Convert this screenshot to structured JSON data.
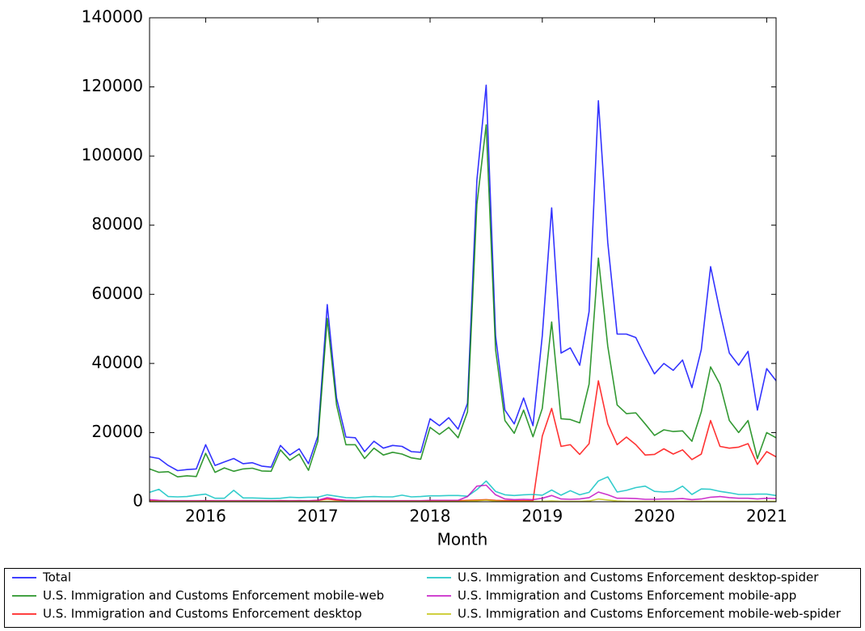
{
  "chart_data": {
    "type": "line",
    "x_label": "Month",
    "x": [
      "2015-07",
      "2015-08",
      "2015-09",
      "2015-10",
      "2015-11",
      "2015-12",
      "2016-01",
      "2016-02",
      "2016-03",
      "2016-04",
      "2016-05",
      "2016-06",
      "2016-07",
      "2016-08",
      "2016-09",
      "2016-10",
      "2016-11",
      "2016-12",
      "2017-01",
      "2017-02",
      "2017-03",
      "2017-04",
      "2017-05",
      "2017-06",
      "2017-07",
      "2017-08",
      "2017-09",
      "2017-10",
      "2017-11",
      "2017-12",
      "2018-01",
      "2018-02",
      "2018-03",
      "2018-04",
      "2018-05",
      "2018-06",
      "2018-07",
      "2018-08",
      "2018-09",
      "2018-10",
      "2018-11",
      "2018-12",
      "2019-01",
      "2019-02",
      "2019-03",
      "2019-04",
      "2019-05",
      "2019-06",
      "2019-07",
      "2019-08",
      "2019-09",
      "2019-10",
      "2019-11",
      "2019-12",
      "2020-01",
      "2020-02",
      "2020-03",
      "2020-04",
      "2020-05",
      "2020-06",
      "2020-07",
      "2020-08",
      "2020-09",
      "2020-10",
      "2020-11",
      "2020-12",
      "2021-01",
      "2021-02"
    ],
    "xlim": [
      "2015-07",
      "2021-02"
    ],
    "xticks": [
      {
        "value": "2016-01",
        "label": "2016"
      },
      {
        "value": "2017-01",
        "label": "2017"
      },
      {
        "value": "2018-01",
        "label": "2018"
      },
      {
        "value": "2019-01",
        "label": "2019"
      },
      {
        "value": "2020-01",
        "label": "2020"
      },
      {
        "value": "2021-01",
        "label": "2021"
      }
    ],
    "ylim": [
      0,
      140000
    ],
    "yticks": [
      0,
      20000,
      40000,
      60000,
      80000,
      100000,
      120000,
      140000
    ],
    "legend": "below",
    "series": [
      {
        "name": "Total",
        "color": "#0000ff",
        "values": [
          13000,
          12500,
          10500,
          9000,
          9300,
          9500,
          16500,
          10500,
          11500,
          12500,
          11000,
          11300,
          10300,
          10000,
          16300,
          13500,
          15300,
          11000,
          19000,
          57000,
          30000,
          18700,
          18500,
          14500,
          17500,
          15500,
          16300,
          16000,
          14500,
          14300,
          24000,
          22000,
          24300,
          21000,
          28500,
          93000,
          120500,
          48000,
          26500,
          22500,
          30000,
          22000,
          48000,
          85000,
          43000,
          44500,
          39500,
          55000,
          116000,
          75000,
          48500,
          48500,
          47500,
          42000,
          37000,
          40000,
          38000,
          41000,
          33000,
          44000,
          68000,
          55000,
          43000,
          39500,
          43500,
          26500,
          38500,
          35000
        ]
      },
      {
        "name": "U.S. Immigration and Customs Enforcement mobile-web",
        "color": "#008000",
        "values": [
          9500,
          8500,
          8700,
          7200,
          7500,
          7300,
          14000,
          8500,
          9800,
          8800,
          9500,
          9700,
          8900,
          8800,
          15000,
          12000,
          13800,
          9100,
          17500,
          53000,
          28000,
          16500,
          16500,
          12500,
          15500,
          13500,
          14300,
          13800,
          12700,
          12300,
          21500,
          19500,
          21500,
          18500,
          26000,
          86000,
          109000,
          44000,
          23500,
          19800,
          26500,
          18800,
          27000,
          52000,
          24000,
          23800,
          22800,
          34000,
          70500,
          45000,
          28000,
          25500,
          25700,
          22500,
          19200,
          20800,
          20300,
          20500,
          17500,
          26000,
          39000,
          34000,
          23500,
          20000,
          23500,
          12500,
          20000,
          18500
        ]
      },
      {
        "name": "U.S. Immigration and Customs Enforcement desktop",
        "color": "#ff0000",
        "values": [
          300,
          300,
          200,
          200,
          200,
          200,
          300,
          200,
          200,
          200,
          200,
          200,
          200,
          200,
          300,
          200,
          300,
          200,
          400,
          800,
          500,
          300,
          300,
          200,
          200,
          200,
          200,
          200,
          200,
          200,
          300,
          300,
          300,
          300,
          400,
          500,
          600,
          400,
          300,
          300,
          300,
          300,
          19000,
          27000,
          16000,
          16500,
          13700,
          16800,
          35000,
          22500,
          16500,
          18700,
          16500,
          13500,
          13700,
          15300,
          13800,
          15000,
          12200,
          13800,
          23500,
          16000,
          15500,
          15800,
          16800,
          10800,
          14500,
          13000
        ]
      },
      {
        "name": "U.S. Immigration and Customs Enforcement desktop-spider",
        "color": "#00bfbf",
        "values": [
          2700,
          3600,
          1500,
          1400,
          1500,
          1900,
          2200,
          1000,
          1000,
          3300,
          1100,
          1100,
          1000,
          900,
          1000,
          1300,
          1200,
          1300,
          1300,
          2000,
          1600,
          1200,
          1100,
          1400,
          1500,
          1400,
          1400,
          1900,
          1400,
          1500,
          1700,
          1700,
          1800,
          1800,
          1600,
          3500,
          6000,
          3000,
          2000,
          1800,
          2000,
          2100,
          1900,
          3400,
          1900,
          3200,
          2000,
          2700,
          6000,
          7200,
          2800,
          3300,
          4100,
          4500,
          3000,
          2800,
          3000,
          4500,
          2100,
          3700,
          3600,
          3000,
          2600,
          2100,
          2100,
          2200,
          2200,
          1800
        ]
      },
      {
        "name": "U.S. Immigration and Customs Enforcement mobile-app",
        "color": "#bf00bf",
        "values": [
          600,
          400,
          300,
          300,
          300,
          300,
          300,
          300,
          300,
          300,
          300,
          300,
          300,
          300,
          300,
          300,
          300,
          300,
          400,
          1200,
          700,
          400,
          300,
          300,
          300,
          300,
          300,
          300,
          300,
          300,
          400,
          400,
          400,
          400,
          1500,
          4500,
          4800,
          2000,
          800,
          600,
          700,
          600,
          1000,
          1800,
          800,
          700,
          800,
          1200,
          2800,
          2000,
          1000,
          1000,
          900,
          700,
          700,
          800,
          800,
          900,
          600,
          800,
          1300,
          1500,
          1200,
          1000,
          1000,
          800,
          1000,
          900
        ]
      },
      {
        "name": "U.S. Immigration and Customs Enforcement mobile-web-spider",
        "color": "#bfbf00",
        "values": [
          100,
          100,
          100,
          100,
          100,
          100,
          100,
          100,
          100,
          100,
          100,
          100,
          100,
          100,
          100,
          100,
          100,
          100,
          100,
          100,
          100,
          100,
          100,
          100,
          100,
          100,
          100,
          100,
          100,
          100,
          100,
          100,
          100,
          100,
          200,
          300,
          500,
          200,
          100,
          100,
          100,
          100,
          100,
          200,
          100,
          100,
          100,
          200,
          800,
          500,
          200,
          100,
          100,
          100,
          100,
          100,
          100,
          100,
          100,
          100,
          100,
          100,
          100,
          100,
          100,
          100,
          100,
          100
        ]
      }
    ]
  }
}
